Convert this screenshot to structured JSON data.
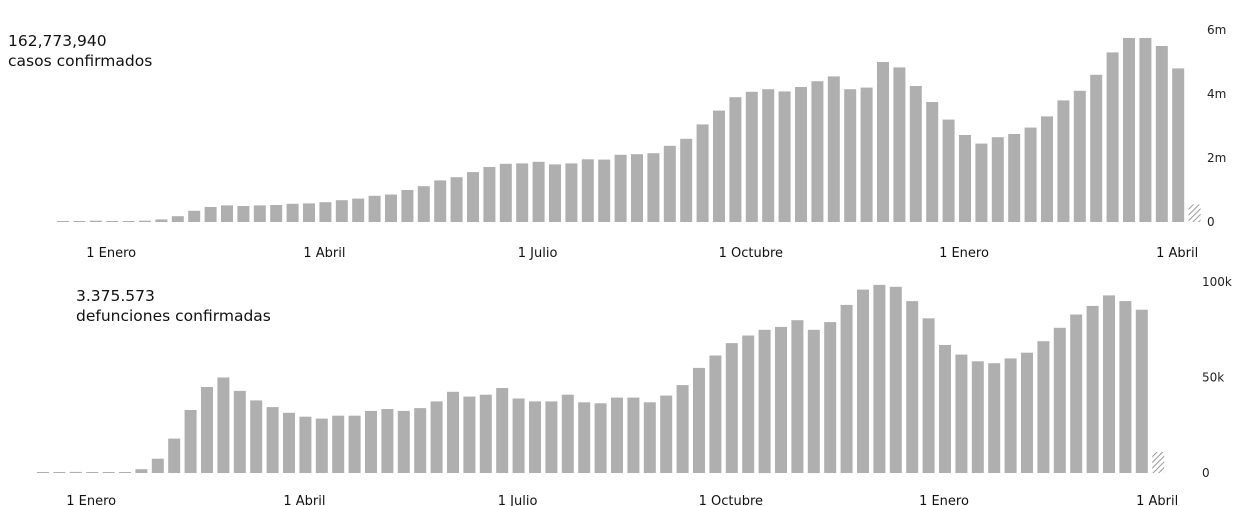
{
  "colors": {
    "bar": "#b0afaf",
    "partial_hatch": "#9a9a9a"
  },
  "chart_data": [
    {
      "type": "bar",
      "headline": {
        "total": "162,773,940",
        "label": "casos confirmados"
      },
      "x_ticks": [
        {
          "label": "1 Enero",
          "index": 3
        },
        {
          "label": "1 Abril",
          "index": 16
        },
        {
          "label": "1 Julio",
          "index": 29
        },
        {
          "label": "1 Octubre",
          "index": 42
        },
        {
          "label": "1 Enero",
          "index": 55
        },
        {
          "label": "1 Abril",
          "index": 68
        }
      ],
      "y_ticks": [
        {
          "value": 0,
          "label": "0"
        },
        {
          "value": 2000000,
          "label": "2m"
        },
        {
          "value": 4000000,
          "label": "4m"
        },
        {
          "value": 6000000,
          "label": "6m"
        }
      ],
      "ylim": [
        0,
        6000000
      ],
      "partial_last": true,
      "values": [
        5000,
        20000,
        40000,
        15000,
        20000,
        40000,
        80000,
        180000,
        350000,
        470000,
        520000,
        500000,
        520000,
        530000,
        570000,
        580000,
        620000,
        680000,
        730000,
        820000,
        860000,
        1000000,
        1120000,
        1300000,
        1400000,
        1560000,
        1720000,
        1820000,
        1830000,
        1880000,
        1800000,
        1830000,
        1960000,
        1950000,
        2100000,
        2120000,
        2150000,
        2380000,
        2600000,
        3050000,
        3480000,
        3900000,
        4070000,
        4150000,
        4080000,
        4220000,
        4400000,
        4550000,
        4150000,
        4200000,
        5000000,
        4830000,
        4250000,
        3750000,
        3200000,
        2720000,
        2450000,
        2650000,
        2750000,
        2950000,
        3300000,
        3800000,
        4100000,
        4600000,
        5300000,
        5750000,
        5750000,
        5500000,
        4800000,
        550000
      ]
    },
    {
      "type": "bar",
      "headline": {
        "total": "3.375.573",
        "label": "defunciones confirmadas"
      },
      "x_ticks": [
        {
          "label": "1 Enero",
          "index": 3
        },
        {
          "label": "1 Abril",
          "index": 16
        },
        {
          "label": "1 Julio",
          "index": 29
        },
        {
          "label": "1 Octubre",
          "index": 42
        },
        {
          "label": "1 Enero",
          "index": 55
        },
        {
          "label": "1 Abril",
          "index": 68
        }
      ],
      "y_ticks": [
        {
          "value": 0,
          "label": "0"
        },
        {
          "value": 50000,
          "label": "50k"
        },
        {
          "value": 100000,
          "label": "100k"
        }
      ],
      "ylim": [
        0,
        100000
      ],
      "partial_last": true,
      "values": [
        100,
        300,
        600,
        500,
        400,
        500,
        2000,
        7500,
        18000,
        33000,
        45000,
        50000,
        43000,
        38000,
        34500,
        31500,
        29500,
        28500,
        30000,
        30000,
        32500,
        33500,
        32500,
        34000,
        37500,
        42500,
        40000,
        41000,
        44500,
        39000,
        37500,
        37500,
        41000,
        37000,
        36500,
        39500,
        39500,
        37000,
        40500,
        46000,
        55000,
        61500,
        68000,
        72000,
        75000,
        76500,
        80000,
        75000,
        79000,
        88000,
        96000,
        98500,
        97500,
        90000,
        81000,
        67000,
        62000,
        58500,
        57500,
        60000,
        63000,
        69000,
        76000,
        83000,
        87500,
        93000,
        90000,
        85500,
        11000
      ]
    }
  ]
}
